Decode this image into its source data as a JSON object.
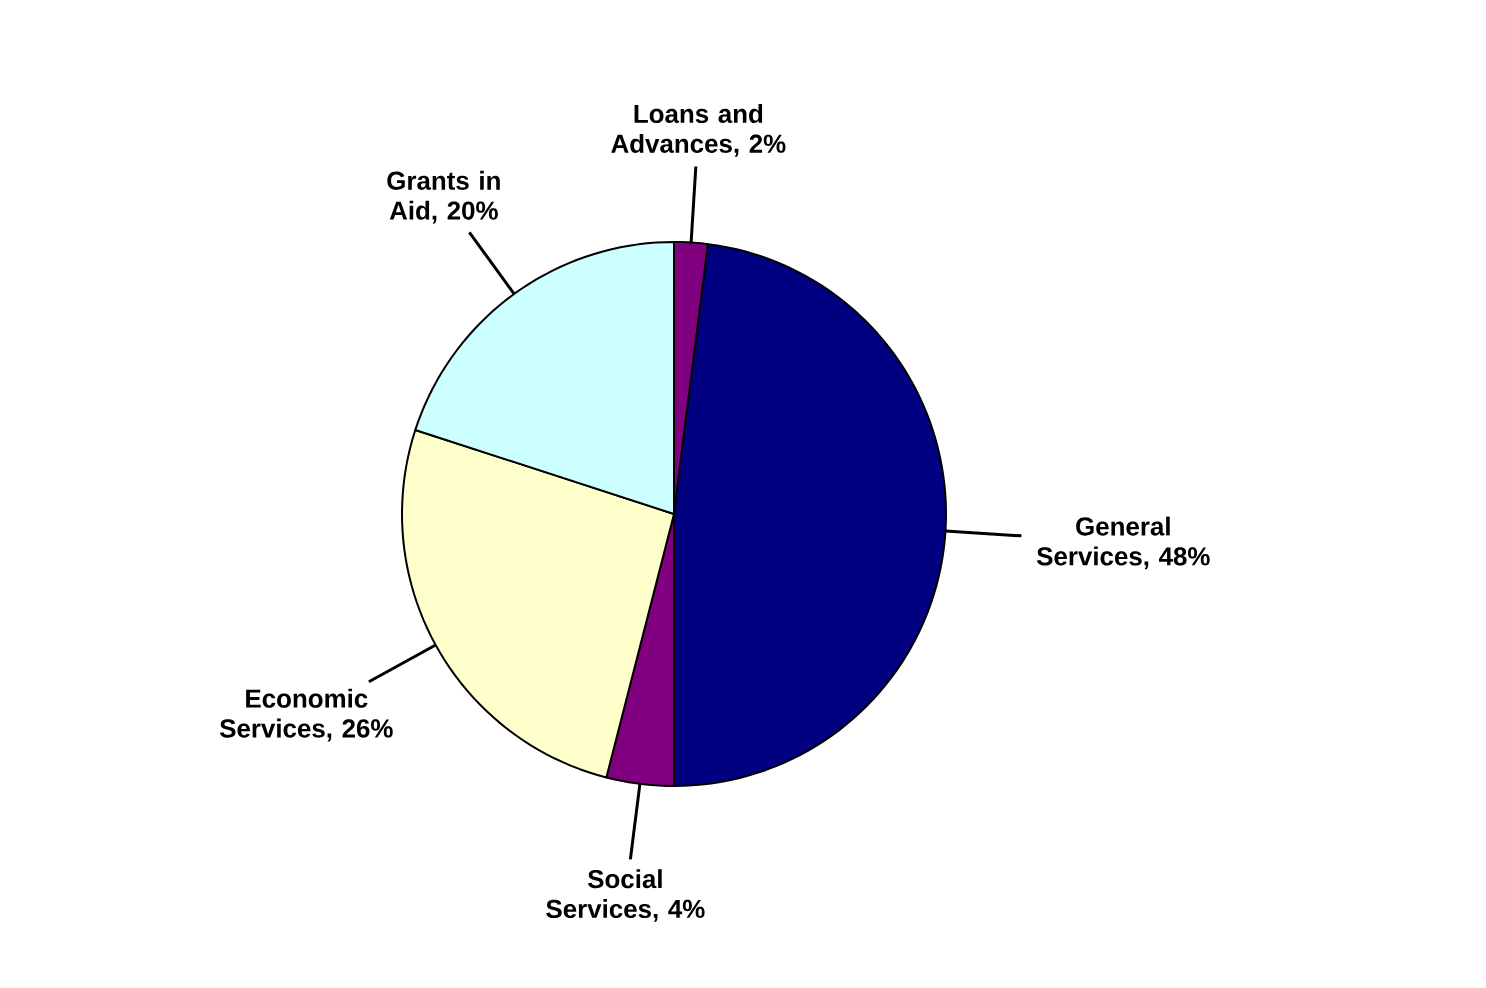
{
  "chart_data": {
    "type": "pie",
    "categories": [
      "Loans and Advances, 2%",
      "General Services, 48%",
      "Social Services, 4%",
      "Economic Services, 26%",
      "Grants in Aid, 20%"
    ],
    "values": [
      2,
      48,
      4,
      26,
      20
    ],
    "colors": [
      "#800080",
      "#000080",
      "#800080",
      "#ffffcc",
      "#ccffff"
    ]
  }
}
